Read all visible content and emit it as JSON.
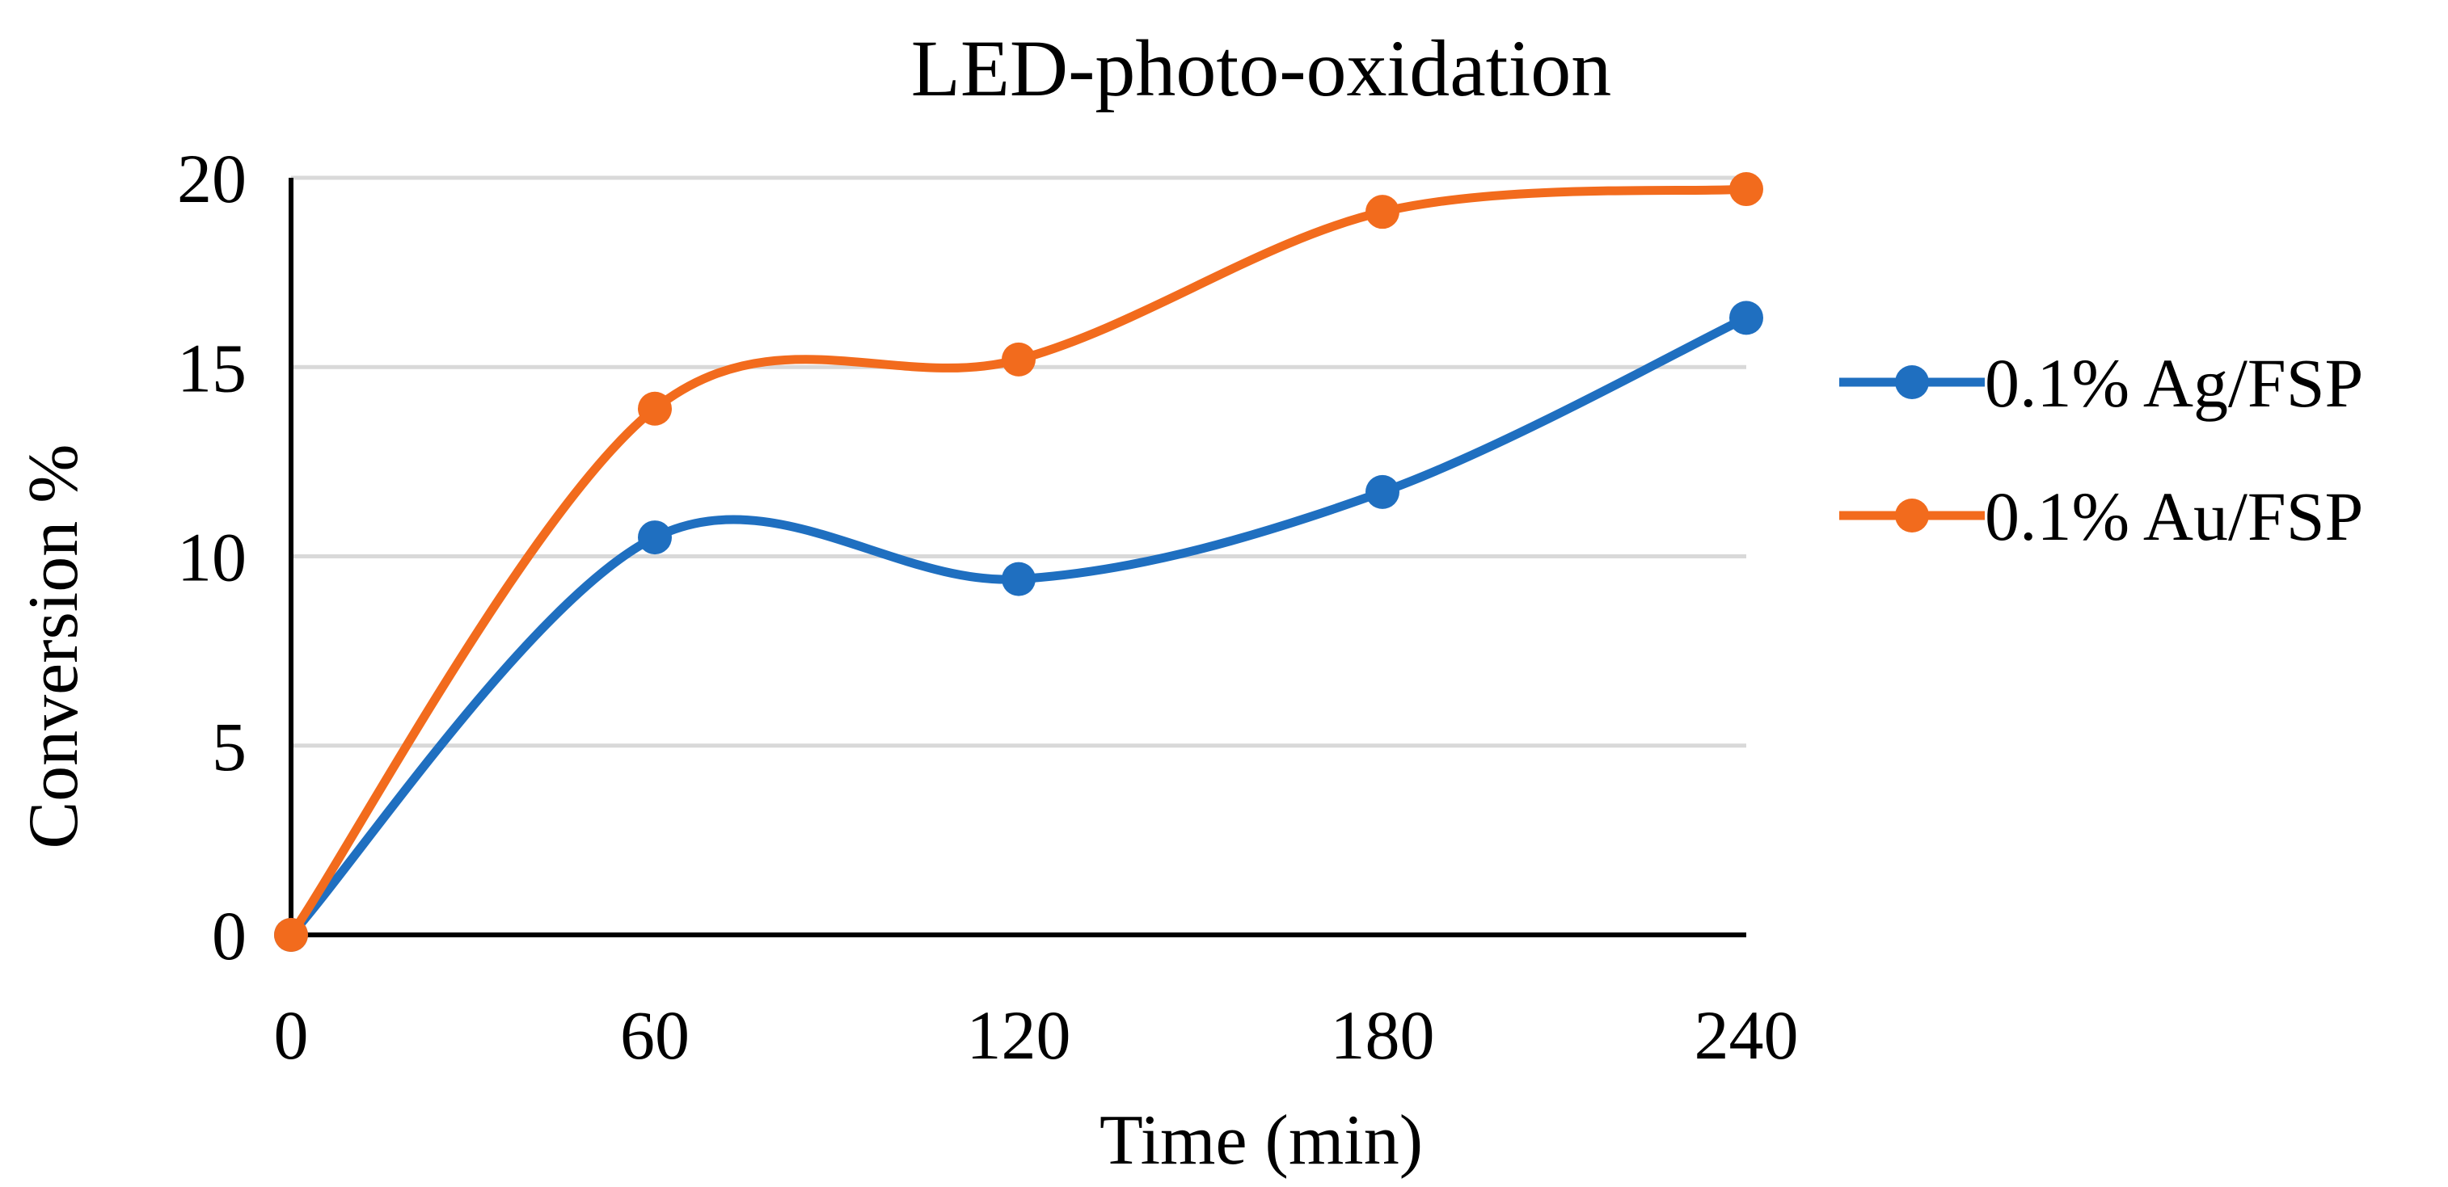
{
  "chart_data": {
    "type": "line",
    "title": "LED-photo-oxidation",
    "xlabel": "Time (min)",
    "ylabel": "Conversion %",
    "x": [
      0,
      60,
      120,
      180,
      240
    ],
    "xticks": [
      "0",
      "60",
      "120",
      "180",
      "240"
    ],
    "yticks": [
      "0",
      "5",
      "10",
      "15",
      "20"
    ],
    "xlim": [
      0,
      240
    ],
    "ylim": [
      0,
      20
    ],
    "grid": true,
    "smooth": true,
    "legend_position": "right",
    "series": [
      {
        "name": "0.1% Ag/FSP",
        "color": "#1f6fc0",
        "values": [
          0,
          10.5,
          9.4,
          11.7,
          16.3
        ]
      },
      {
        "name": "0.1% Au/FSP",
        "color": "#f26b1d",
        "values": [
          0,
          13.9,
          15.2,
          19.1,
          19.7
        ]
      }
    ]
  }
}
